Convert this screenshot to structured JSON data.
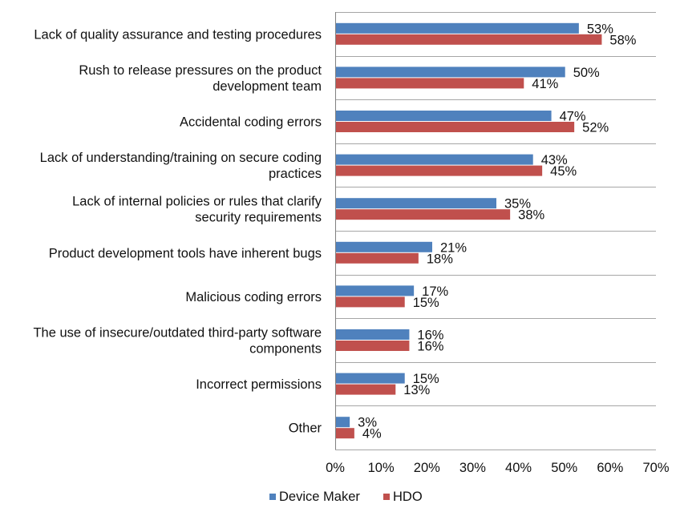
{
  "colors": {
    "device_maker": "#4f81bd",
    "hdo": "#c0504d",
    "grid": "#a6a6a6"
  },
  "chart_data": {
    "type": "bar",
    "orientation": "horizontal",
    "categories": [
      [
        "Lack of quality assurance and testing procedures"
      ],
      [
        "Rush to release pressures on the product",
        "development team"
      ],
      [
        "Accidental coding errors"
      ],
      [
        "Lack of understanding/training on secure coding",
        "practices"
      ],
      [
        "Lack of internal policies or rules that clarify",
        "security requirements"
      ],
      [
        "Product development tools have inherent bugs"
      ],
      [
        "Malicious coding errors"
      ],
      [
        "The use of insecure/outdated third-party software",
        "components"
      ],
      [
        "Incorrect permissions"
      ],
      [
        "Other"
      ]
    ],
    "series": [
      {
        "name": "Device Maker",
        "values": [
          53,
          50,
          47,
          43,
          35,
          21,
          17,
          16,
          15,
          3
        ]
      },
      {
        "name": "HDO",
        "values": [
          58,
          41,
          52,
          45,
          38,
          18,
          15,
          16,
          13,
          4
        ]
      }
    ],
    "value_suffix": "%",
    "xlim": [
      0,
      70
    ],
    "xticks": [
      "0%",
      "10%",
      "20%",
      "30%",
      "40%",
      "50%",
      "60%",
      "70%"
    ],
    "grid": true,
    "legend_position": "bottom"
  }
}
